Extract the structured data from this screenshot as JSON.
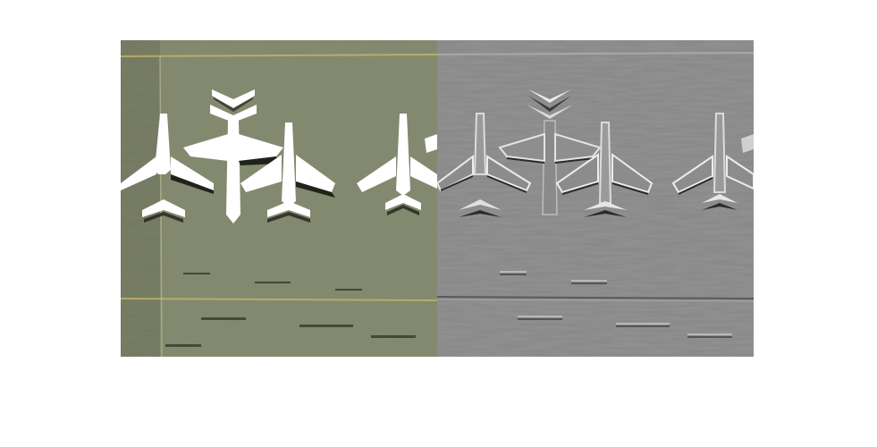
{
  "figure": {
    "panels": [
      {
        "name": "original-aerial-image",
        "description_hidden": ""
      },
      {
        "name": "filtered-emboss-image",
        "description_hidden": ""
      }
    ],
    "colors": {
      "ground_original": "#7a8062",
      "ground_original_light": "#8d9273",
      "ground_original_dark": "#5f6550",
      "plane_white": "#ffffff",
      "shadow": "#1f2318",
      "ground_filtered": "#858585",
      "filtered_light": "#f0f0f0",
      "filtered_dark": "#2a2a2a",
      "line_yellow": "#c7b56a"
    }
  }
}
